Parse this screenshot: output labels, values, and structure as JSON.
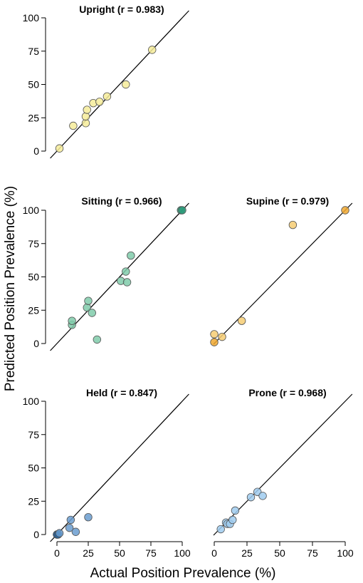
{
  "chart_data": [
    {
      "type": "scatter",
      "title": "Upright (r = 0.983)",
      "xlim": [
        0,
        100
      ],
      "ylim": [
        0,
        100
      ],
      "ticks": [
        "0",
        "25",
        "50",
        "75",
        "100"
      ],
      "x_ticks_shown": false,
      "y_ticks_shown": true,
      "color": "#f6ec9a",
      "highlight_color": "#f6ec9a",
      "series": [
        {
          "x": [
            2,
            13,
            23,
            23,
            24,
            29,
            34,
            40,
            55,
            76
          ],
          "y": [
            2,
            19,
            21,
            26,
            31,
            36,
            37,
            41,
            50,
            76
          ]
        }
      ]
    },
    {
      "type": "scatter",
      "title": "Sitting (r = 0.966)",
      "xlim": [
        0,
        100
      ],
      "ylim": [
        0,
        100
      ],
      "ticks": [
        "0",
        "25",
        "50",
        "75",
        "100"
      ],
      "x_ticks_shown": false,
      "y_ticks_shown": true,
      "color": "#80cbaa",
      "highlight_color": "#2d9b7a",
      "series": [
        {
          "x": [
            12,
            12,
            24,
            25,
            28,
            32,
            51,
            55,
            56,
            59,
            99,
            100
          ],
          "y": [
            14,
            17,
            27,
            32,
            23,
            3,
            47,
            54,
            46,
            66,
            100,
            100
          ]
        }
      ]
    },
    {
      "type": "scatter",
      "title": "Supine (r = 0.979)",
      "xlim": [
        0,
        100
      ],
      "ylim": [
        0,
        100
      ],
      "ticks": [
        "0",
        "25",
        "50",
        "75",
        "100"
      ],
      "x_ticks_shown": false,
      "y_ticks_shown": false,
      "color": "#f6cd73",
      "highlight_color": "#f0a830",
      "series": [
        {
          "x": [
            0,
            0,
            6,
            21,
            60,
            100
          ],
          "y": [
            1,
            7,
            5,
            17,
            89,
            100
          ]
        }
      ]
    },
    {
      "type": "scatter",
      "title": "Held (r = 0.847)",
      "xlim": [
        0,
        100
      ],
      "ylim": [
        0,
        100
      ],
      "ticks": [
        "0",
        "25",
        "50",
        "75",
        "100"
      ],
      "x_ticks_shown": true,
      "y_ticks_shown": true,
      "color": "#6a9ccf",
      "highlight_color": "#1f64a8",
      "series": [
        {
          "x": [
            0,
            0,
            1,
            2,
            10,
            11,
            15,
            25
          ],
          "y": [
            0,
            0,
            0,
            1,
            5,
            11,
            2,
            13
          ]
        }
      ]
    },
    {
      "type": "scatter",
      "title": "Prone (r = 0.968)",
      "xlim": [
        0,
        100
      ],
      "ylim": [
        0,
        100
      ],
      "ticks": [
        "0",
        "25",
        "50",
        "75",
        "100"
      ],
      "x_ticks_shown": true,
      "y_ticks_shown": false,
      "color": "#9fcbef",
      "highlight_color": "#9fcbef",
      "series": [
        {
          "x": [
            5,
            9,
            10,
            12,
            14,
            16,
            28,
            33,
            37
          ],
          "y": [
            4,
            9,
            8,
            8,
            11,
            18,
            28,
            32,
            29
          ]
        }
      ]
    }
  ],
  "figure": {
    "ylabel": "Predicted Position Prevalence (%)",
    "xlabel": "Actual Position Prevalence (%)"
  }
}
